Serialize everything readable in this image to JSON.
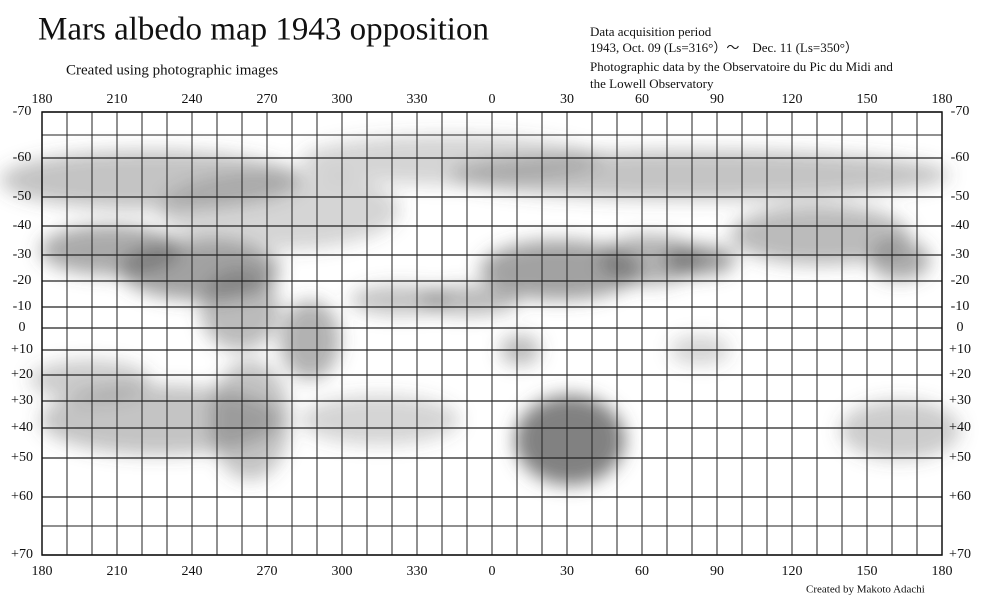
{
  "header": {
    "title": "Mars albedo map 1943 opposition",
    "subtitle": "Created using photographic images",
    "info": [
      "Data acquisition period",
      "1943, Oct. 09 (Ls=316°）～　Dec. 11 (Ls=350°）",
      "Photographic data by the Observatoire du Pic du Midi and",
      "the Lowell Observatory"
    ]
  },
  "map": {
    "longitude_labels": [
      "180",
      "210",
      "240",
      "270",
      "300",
      "330",
      "0",
      "30",
      "60",
      "90",
      "120",
      "150",
      "180"
    ],
    "latitude_labels": [
      "-70",
      "-60",
      "-50",
      "-40",
      "-30",
      "-20",
      "-10",
      "0",
      "+10",
      "+20",
      "+30",
      "+40",
      "+50",
      "+60",
      "+70"
    ]
  },
  "footer": {
    "credit": "Created by Makoto Adachi"
  }
}
